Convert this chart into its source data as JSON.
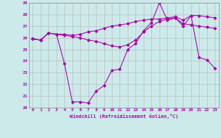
{
  "xlabel": "Windchill (Refroidissement éolien,°C)",
  "line_color": "#aa00aa",
  "bg_color": "#cceaea",
  "grid_color": "#bbbbbb",
  "ylim": [
    20,
    29
  ],
  "xlim": [
    -0.5,
    23.5
  ],
  "yticks": [
    20,
    21,
    22,
    23,
    24,
    25,
    26,
    27,
    28,
    29
  ],
  "xticks": [
    0,
    1,
    2,
    3,
    4,
    5,
    6,
    7,
    8,
    9,
    10,
    11,
    12,
    13,
    14,
    15,
    16,
    17,
    18,
    19,
    20,
    21,
    22,
    23
  ],
  "series": [
    [
      25.9,
      25.8,
      26.4,
      26.3,
      23.8,
      20.5,
      20.5,
      20.4,
      21.4,
      21.9,
      23.2,
      23.3,
      25.0,
      25.5,
      26.6,
      27.3,
      29.0,
      27.5,
      27.7,
      27.0,
      27.9,
      24.3,
      24.1,
      23.4
    ],
    [
      25.9,
      25.8,
      26.4,
      26.3,
      26.2,
      26.1,
      26.0,
      25.8,
      25.7,
      25.5,
      25.3,
      25.2,
      25.4,
      25.8,
      26.5,
      27.0,
      27.4,
      27.6,
      27.7,
      27.2,
      27.1,
      27.0,
      26.9,
      26.8
    ],
    [
      25.9,
      25.8,
      26.4,
      26.3,
      26.3,
      26.2,
      26.3,
      26.5,
      26.6,
      26.8,
      27.0,
      27.1,
      27.2,
      27.4,
      27.5,
      27.6,
      27.6,
      27.7,
      27.8,
      27.5,
      27.9,
      27.9,
      27.8,
      27.7
    ]
  ]
}
